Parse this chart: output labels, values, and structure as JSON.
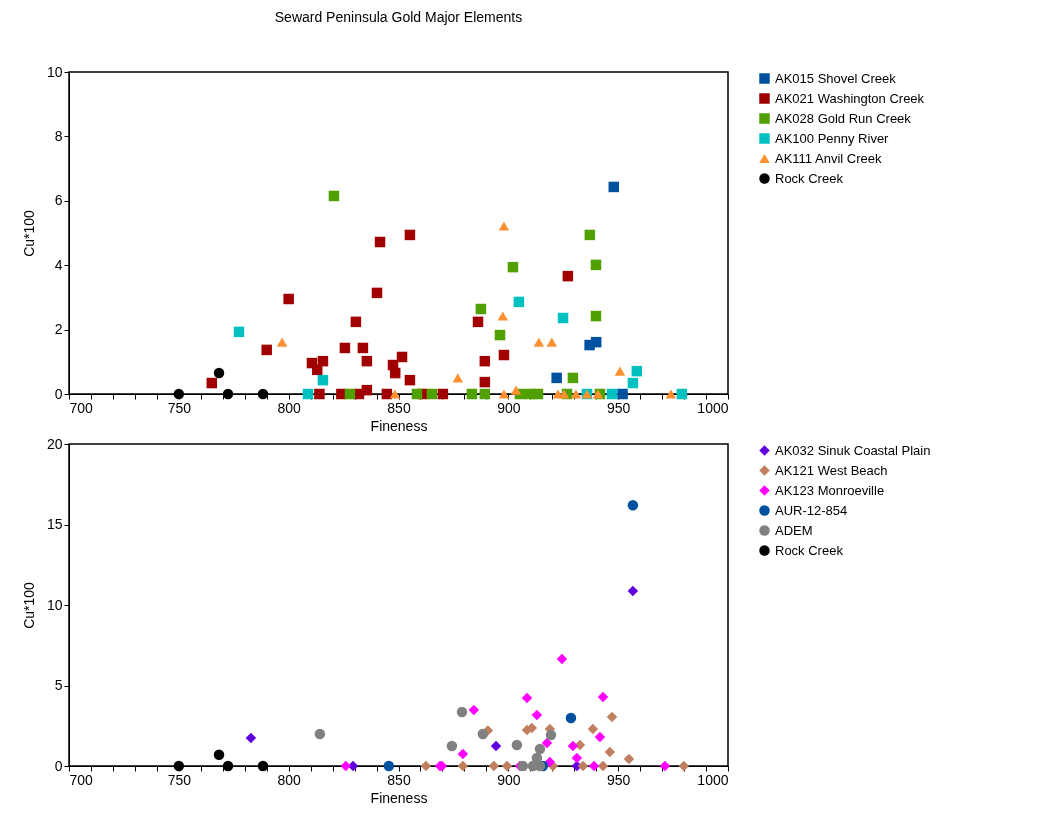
{
  "chart_data": [
    {
      "type": "scatter",
      "title": "Seward Peninsula Gold Major Elements",
      "xlabel": "Fineness",
      "ylabel": "Cu*100",
      "xlim": [
        700,
        1000
      ],
      "ylim": [
        0,
        10
      ],
      "xticks": [
        700,
        {
          "value": 710,
          "label": null
        },
        {
          "value": 720,
          "label": null
        },
        {
          "value": 730,
          "label": null
        },
        {
          "value": 740,
          "label": null
        },
        750,
        {
          "value": 760,
          "label": null
        },
        {
          "value": 770,
          "label": null
        },
        {
          "value": 780,
          "label": null
        },
        {
          "value": 790,
          "label": null
        },
        800,
        {
          "value": 810,
          "label": null
        },
        {
          "value": 820,
          "label": null
        },
        {
          "value": 830,
          "label": null
        },
        {
          "value": 840,
          "label": null
        },
        850,
        {
          "value": 860,
          "label": null
        },
        {
          "value": 870,
          "label": null
        },
        {
          "value": 880,
          "label": null
        },
        {
          "value": 890,
          "label": null
        },
        900,
        {
          "value": 910,
          "label": null
        },
        {
          "value": 920,
          "label": null
        },
        {
          "value": 930,
          "label": null
        },
        {
          "value": 940,
          "label": null
        },
        950,
        {
          "value": 960,
          "label": null
        },
        {
          "value": 970,
          "label": null
        },
        {
          "value": 980,
          "label": null
        },
        {
          "value": 990,
          "label": null
        },
        1000
      ],
      "yticks": [
        0,
        2,
        4,
        6,
        8,
        10
      ],
      "grid": false,
      "legend": "right",
      "series": [
        {
          "name": "AK015 Shovel Creek",
          "color": "#0050a0",
          "marker": "square",
          "x": [
            948,
            937,
            940,
            922,
            952
          ],
          "values": [
            6.43,
            1.52,
            1.61,
            0.5,
            0
          ]
        },
        {
          "name": "AK021 Washington Creek",
          "color": "#a00000",
          "marker": "square",
          "x": [
            765,
            790,
            800,
            810.6,
            815.6,
            813,
            814,
            825.6,
            830.6,
            833.8,
            835.6,
            835.6,
            840.2,
            841.6,
            855.2,
            851.6,
            847.5,
            848.5,
            855.2,
            824,
            832,
            844.7,
            870.2,
            861,
            886.2,
            927.1,
            889.3,
            898,
            889.3
          ],
          "values": [
            0.34,
            1.37,
            2.95,
            0.96,
            1.02,
            0.75,
            0,
            1.43,
            2.24,
            1.43,
            1.02,
            0.12,
            3.14,
            4.72,
            4.94,
            1.15,
            0.9,
            0.65,
            0.43,
            0,
            0,
            0,
            0,
            0,
            2.24,
            3.66,
            1.02,
            1.21,
            0.37
          ]
        },
        {
          "name": "AK028 Gold Run Creek",
          "color": "#50a000",
          "marker": "square",
          "x": [
            820.6,
            827.9,
            858.4,
            865.2,
            937.1,
            939.9,
            902.1,
            887.5,
            939.9,
            896.2,
            929.4,
            883.4,
            889.3,
            905.3,
            909.8,
            913.5,
            926.7,
            941.7
          ],
          "values": [
            6.15,
            0,
            0,
            0,
            4.94,
            4.01,
            3.94,
            2.64,
            2.42,
            1.83,
            0.5,
            0,
            0,
            0,
            0,
            0,
            0,
            0
          ]
        },
        {
          "name": "AK100 Penny River",
          "color": "#00c0c0",
          "marker": "square",
          "x": [
            777.4,
            815.6,
            808.8,
            904.8,
            924.9,
            958.5,
            956.7,
            979,
            947.2,
            935.8
          ],
          "values": [
            1.93,
            0.43,
            0,
            2.86,
            2.36,
            0.71,
            0.34,
            0,
            0,
            0
          ]
        },
        {
          "name": "AK111 Anvil Creek",
          "color": "#ff9030",
          "marker": "triangle",
          "x": [
            797,
            848.4,
            877,
            898,
            897.5,
            913.9,
            919.8,
            950.8,
            898,
            903.5,
            922.6,
            925.3,
            930.8,
            935.8,
            940.8,
            974
          ],
          "values": [
            1.61,
            0,
            0.5,
            5.22,
            2.42,
            1.61,
            1.61,
            0.71,
            0,
            0.12,
            0,
            0,
            0,
            0,
            0,
            0
          ]
        },
        {
          "name": "Rock Creek",
          "color": "#000000",
          "marker": "circle",
          "x": [
            750,
            768.3,
            772.4,
            788.3
          ],
          "values": [
            0,
            0.65,
            0,
            0
          ]
        }
      ]
    },
    {
      "type": "scatter",
      "xlabel": "Fineness",
      "ylabel": "Cu*100",
      "xlim": [
        700,
        1000
      ],
      "ylim": [
        0,
        20
      ],
      "xticks": [
        700,
        {
          "value": 710,
          "label": null
        },
        {
          "value": 720,
          "label": null
        },
        {
          "value": 730,
          "label": null
        },
        {
          "value": 740,
          "label": null
        },
        750,
        {
          "value": 760,
          "label": null
        },
        {
          "value": 770,
          "label": null
        },
        {
          "value": 780,
          "label": null
        },
        {
          "value": 790,
          "label": null
        },
        800,
        {
          "value": 810,
          "label": null
        },
        {
          "value": 820,
          "label": null
        },
        {
          "value": 830,
          "label": null
        },
        {
          "value": 840,
          "label": null
        },
        850,
        {
          "value": 860,
          "label": null
        },
        {
          "value": 870,
          "label": null
        },
        {
          "value": 880,
          "label": null
        },
        {
          "value": 890,
          "label": null
        },
        900,
        {
          "value": 910,
          "label": null
        },
        {
          "value": 920,
          "label": null
        },
        {
          "value": 930,
          "label": null
        },
        {
          "value": 940,
          "label": null
        },
        950,
        {
          "value": 960,
          "label": null
        },
        {
          "value": 970,
          "label": null
        },
        {
          "value": 980,
          "label": null
        },
        {
          "value": 990,
          "label": null
        },
        1000
      ],
      "yticks": [
        0,
        5,
        10,
        15,
        20
      ],
      "grid": false,
      "legend": "right",
      "series": [
        {
          "name": "AK032 Sinuk Coastal Plain",
          "color": "#6000e0",
          "marker": "diamond",
          "x": [
            782.8,
            829.3,
            956.7,
            894.4,
            931.2
          ],
          "values": [
            1.74,
            0,
            10.87,
            1.24,
            0
          ]
        },
        {
          "name": "AK121 West Beach",
          "color": "#c08060",
          "marker": "diamond",
          "x": [
            862.5,
            879.3,
            890.7,
            893.4,
            899.4,
            908.5,
            910.7,
            918.9,
            920.3,
            932.6,
            934,
            938.5,
            943.1,
            946.2,
            947.2,
            954.9,
            979.9
          ],
          "values": [
            0,
            0,
            2.2,
            0,
            0,
            2.24,
            2.36,
            2.3,
            0,
            1.3,
            0,
            2.3,
            0,
            0.87,
            3.04,
            0.43,
            0
          ]
        },
        {
          "name": "AK123 Monroeville",
          "color": "#ff00ff",
          "marker": "diamond",
          "x": [
            826,
            868.9,
            869.8,
            879.3,
            884.3,
            908.5,
            913,
            924.4,
            943.1,
            941.7,
            929.4,
            931.2,
            917.6,
            939,
            971.3,
            905.3,
            918.9
          ],
          "values": [
            0,
            0,
            0,
            0.75,
            3.48,
            4.22,
            3.17,
            6.65,
            4.29,
            1.8,
            1.24,
            0.5,
            1.43,
            0,
            0,
            0,
            0.25
          ]
        },
        {
          "name": "AUR-12-854",
          "color": "#0050a0",
          "marker": "circle",
          "x": [
            845.6,
            956.7,
            928.5,
            915.7
          ],
          "values": [
            0,
            16.2,
            2.98,
            0
          ]
        },
        {
          "name": "ADEM",
          "color": "#808080",
          "marker": "circle",
          "x": [
            814.2,
            874.3,
            878.9,
            888.4,
            903.9,
            919.4,
            914.4,
            913,
            906.6,
            911.2,
            914.4
          ],
          "values": [
            1.99,
            1.24,
            3.35,
            1.99,
            1.3,
            1.93,
            1.06,
            0.5,
            0,
            0,
            0
          ]
        },
        {
          "name": "Rock Creek",
          "color": "#000000",
          "marker": "circle",
          "x": [
            750,
            768.3,
            772.4,
            788.3
          ],
          "values": [
            0,
            0.7,
            0,
            0
          ]
        }
      ]
    }
  ]
}
